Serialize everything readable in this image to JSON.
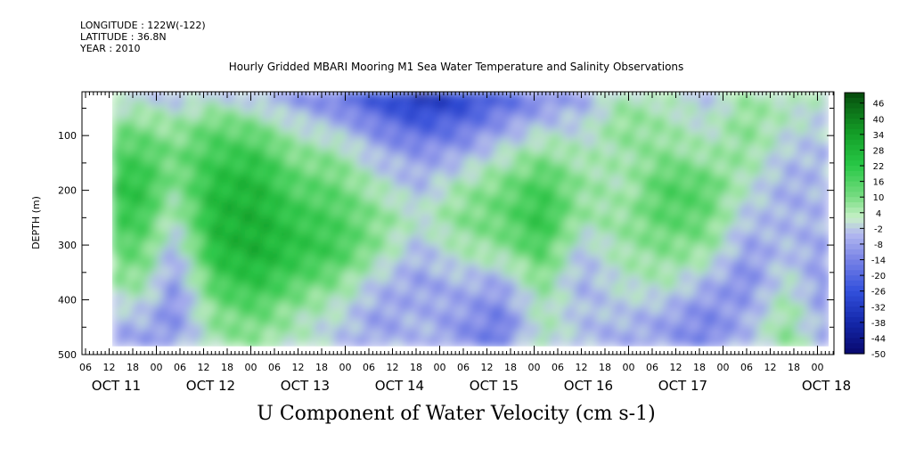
{
  "header": {
    "longitude": "LONGITUDE : 122W(-122)",
    "latitude": "LATITUDE : 36.8N",
    "year": "YEAR : 2010"
  },
  "chart_data": {
    "type": "heatmap",
    "title": "Hourly Gridded MBARI Mooring M1 Sea Water Temperature and Salinity Observations",
    "xlabel": "U Component of Water Velocity (cm s-1)",
    "ylabel": "DEPTH (m)",
    "y_range": [
      500,
      20
    ],
    "y_ticks": [
      100,
      200,
      300,
      400,
      500
    ],
    "x_start": "2010-10-11 06:00",
    "x_end": "2010-10-18 06:00",
    "hour_ticks": [
      "06",
      "12",
      "18",
      "00",
      "06",
      "12",
      "18",
      "00",
      "06",
      "12",
      "18",
      "00",
      "06",
      "12",
      "18",
      "00",
      "06",
      "12",
      "18",
      "00",
      "06",
      "12",
      "18",
      "00",
      "06",
      "12",
      "18",
      "00",
      "06",
      "12",
      "18",
      "00"
    ],
    "day_labels": [
      "OCT 11",
      "OCT 12",
      "OCT 13",
      "OCT 14",
      "OCT 15",
      "OCT 16",
      "OCT 17",
      "OCT 18"
    ],
    "colorbar_labels": [
      "46",
      "40",
      "34",
      "28",
      "22",
      "16",
      "10",
      "4",
      "-2",
      "-8",
      "-14",
      "-20",
      "-26",
      "-32",
      "-38",
      "-44",
      "-50"
    ],
    "value_range": [
      -50,
      50
    ],
    "colors": {
      "negative": "#1030c0",
      "positive": "#10a030",
      "mid": "#c8f0c0"
    },
    "pattern": [
      {
        "x": 0.3,
        "values": [
          -4,
          10,
          18,
          24,
          20,
          14,
          8,
          -4,
          -10
        ]
      },
      {
        "x": 0.6,
        "values": [
          -6,
          6,
          12,
          8,
          2,
          -6,
          -12,
          -14,
          -10
        ]
      },
      {
        "x": 1.0,
        "values": [
          -4,
          14,
          20,
          26,
          28,
          26,
          18,
          10,
          6
        ]
      },
      {
        "x": 1.4,
        "values": [
          -8,
          10,
          22,
          28,
          30,
          30,
          24,
          14,
          8
        ]
      },
      {
        "x": 1.8,
        "values": [
          -14,
          0,
          10,
          16,
          22,
          24,
          16,
          6,
          2
        ]
      },
      {
        "x": 2.2,
        "values": [
          -20,
          -6,
          8,
          14,
          18,
          20,
          10,
          0,
          -4
        ]
      },
      {
        "x": 2.6,
        "values": [
          -30,
          -16,
          -6,
          4,
          10,
          8,
          -4,
          -10,
          -8
        ]
      },
      {
        "x": 3.0,
        "values": [
          -38,
          -24,
          -10,
          -6,
          2,
          -6,
          -10,
          -6,
          -4
        ]
      },
      {
        "x": 3.4,
        "values": [
          -34,
          -20,
          -8,
          6,
          10,
          4,
          -6,
          -10,
          -12
        ]
      },
      {
        "x": 3.8,
        "values": [
          -24,
          -12,
          2,
          12,
          14,
          8,
          -8,
          -16,
          -18
        ]
      },
      {
        "x": 4.2,
        "values": [
          -16,
          -4,
          10,
          20,
          24,
          18,
          10,
          4,
          6
        ]
      },
      {
        "x": 4.6,
        "values": [
          -10,
          -2,
          4,
          8,
          6,
          -4,
          -8,
          -4,
          -6
        ]
      },
      {
        "x": 5.0,
        "values": [
          4,
          10,
          6,
          4,
          8,
          6,
          2,
          -4,
          -8
        ]
      },
      {
        "x": 5.4,
        "values": [
          2,
          6,
          10,
          18,
          16,
          10,
          4,
          -8,
          -10
        ]
      },
      {
        "x": 5.8,
        "values": [
          -4,
          0,
          6,
          16,
          14,
          8,
          -6,
          -14,
          -16
        ]
      },
      {
        "x": 6.2,
        "values": [
          6,
          10,
          8,
          2,
          -4,
          -10,
          -14,
          -8,
          -4
        ]
      },
      {
        "x": 6.6,
        "values": [
          4,
          2,
          -4,
          -8,
          -6,
          -4,
          2,
          8,
          10
        ]
      },
      {
        "x": 7.0,
        "values": [
          2,
          -2,
          -6,
          -4,
          -6,
          -10,
          -14,
          -12,
          -8
        ]
      }
    ]
  }
}
